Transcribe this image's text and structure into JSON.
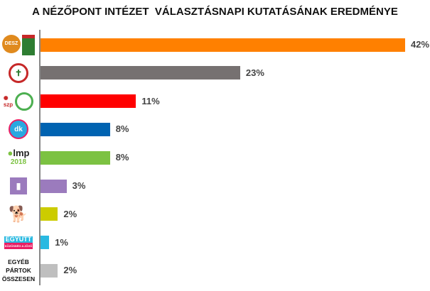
{
  "chart_data": {
    "type": "bar",
    "orientation": "horizontal",
    "title": "A NÉZŐPONT INTÉZET  VÁLASZTÁSNAPI KUTATÁSÁNAK EREDMÉNYE",
    "categories": [
      "Fidesz–KDNP",
      "Jobbik",
      "MSZP–Párbeszéd",
      "DK",
      "LMP",
      "Momentum",
      "MKKP",
      "Együtt",
      "EGYÉB PÁRTOK ÖSSZESEN"
    ],
    "values": [
      42,
      23,
      11,
      8,
      8,
      3,
      2,
      1,
      2
    ],
    "data_labels": [
      "42%",
      "23%",
      "11%",
      "8%",
      "8%",
      "3%",
      "2%",
      "1%",
      "2%"
    ],
    "colors": [
      "#FF8000",
      "#767171",
      "#FF0000",
      "#0063B1",
      "#7CC242",
      "#9B7BBD",
      "#CCCC00",
      "#29B9E1",
      "#BFBFBF"
    ],
    "logo_text": [
      "FIDESZ",
      "KDNP",
      "JOBBIK",
      "MSZP",
      "párbeszéd",
      "dk",
      "lmp 2018",
      "MOMENTUM",
      "dog-logo",
      "EGYÜTT",
      "KÖZÖSSÉG A JÖVŐ"
    ],
    "other_label": [
      "EGYÉB PÁRTOK",
      "ÖSSZESEN"
    ],
    "xlim": [
      0,
      42
    ],
    "grid": false,
    "legend": "none"
  }
}
